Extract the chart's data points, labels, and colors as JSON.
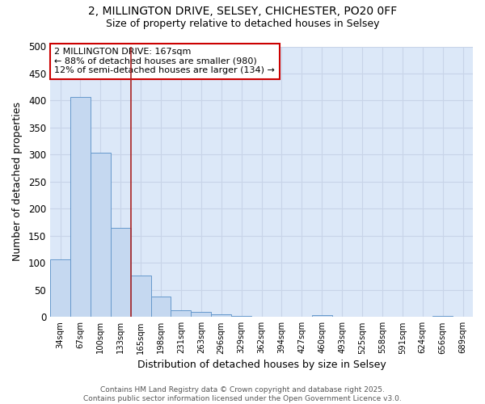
{
  "title_line1": "2, MILLINGTON DRIVE, SELSEY, CHICHESTER, PO20 0FF",
  "title_line2": "Size of property relative to detached houses in Selsey",
  "categories": [
    "34sqm",
    "67sqm",
    "100sqm",
    "133sqm",
    "165sqm",
    "198sqm",
    "231sqm",
    "263sqm",
    "296sqm",
    "329sqm",
    "362sqm",
    "394sqm",
    "427sqm",
    "460sqm",
    "493sqm",
    "525sqm",
    "558sqm",
    "591sqm",
    "624sqm",
    "656sqm",
    "689sqm"
  ],
  "values": [
    107,
    406,
    303,
    165,
    76,
    38,
    13,
    10,
    5,
    2,
    0,
    0,
    0,
    3,
    0,
    0,
    0,
    0,
    0,
    2,
    0
  ],
  "bar_color": "#c5d8f0",
  "bar_edge_color": "#6699cc",
  "grid_color": "#c8d4e8",
  "plot_bg_color": "#dce8f8",
  "figure_bg_color": "#ffffff",
  "vline_x": 3.5,
  "vline_color": "#aa2222",
  "annotation_text": "2 MILLINGTON DRIVE: 167sqm\n← 88% of detached houses are smaller (980)\n12% of semi-detached houses are larger (134) →",
  "annotation_box_facecolor": "#ffffff",
  "annotation_box_edgecolor": "#cc0000",
  "xlabel": "Distribution of detached houses by size in Selsey",
  "ylabel": "Number of detached properties",
  "footer_line1": "Contains HM Land Registry data © Crown copyright and database right 2025.",
  "footer_line2": "Contains public sector information licensed under the Open Government Licence v3.0.",
  "ylim": [
    0,
    500
  ],
  "yticks": [
    0,
    50,
    100,
    150,
    200,
    250,
    300,
    350,
    400,
    450,
    500
  ]
}
